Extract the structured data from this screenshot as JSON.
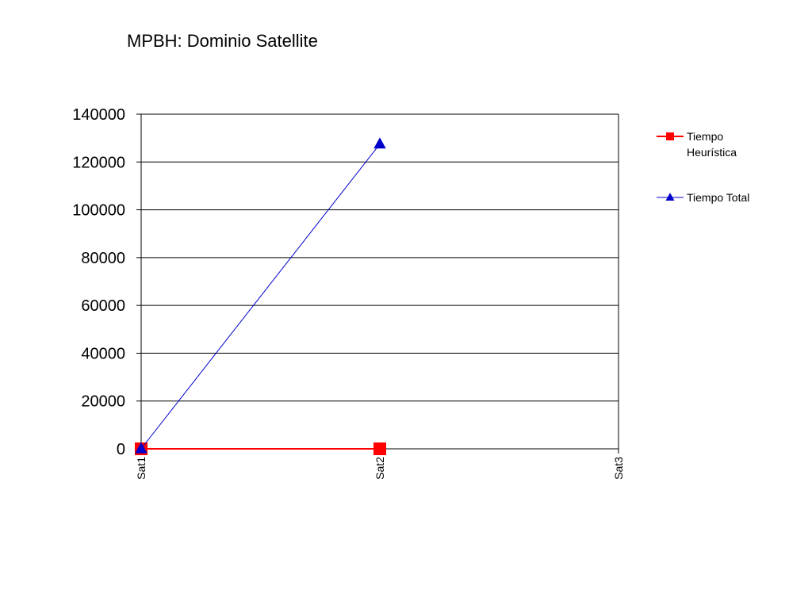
{
  "chart_data": {
    "type": "line",
    "title": "MPBH: Dominio Satellite",
    "xlabel": "",
    "ylabel": "",
    "categories": [
      "Sat1",
      "Sat2",
      "Sat3"
    ],
    "ylim": [
      0,
      140000
    ],
    "yticks": [
      0,
      20000,
      40000,
      60000,
      80000,
      100000,
      120000,
      140000
    ],
    "grid": true,
    "legend_position": "right",
    "series": [
      {
        "name_lines": [
          "Tiempo",
          "Heurística"
        ],
        "color": "#ff0000",
        "marker": "square",
        "values": [
          0,
          0,
          null
        ]
      },
      {
        "name_lines": [
          "Tiempo Total"
        ],
        "color": "#0000cc",
        "marker": "triangle",
        "values": [
          0,
          127500,
          null
        ]
      }
    ]
  }
}
